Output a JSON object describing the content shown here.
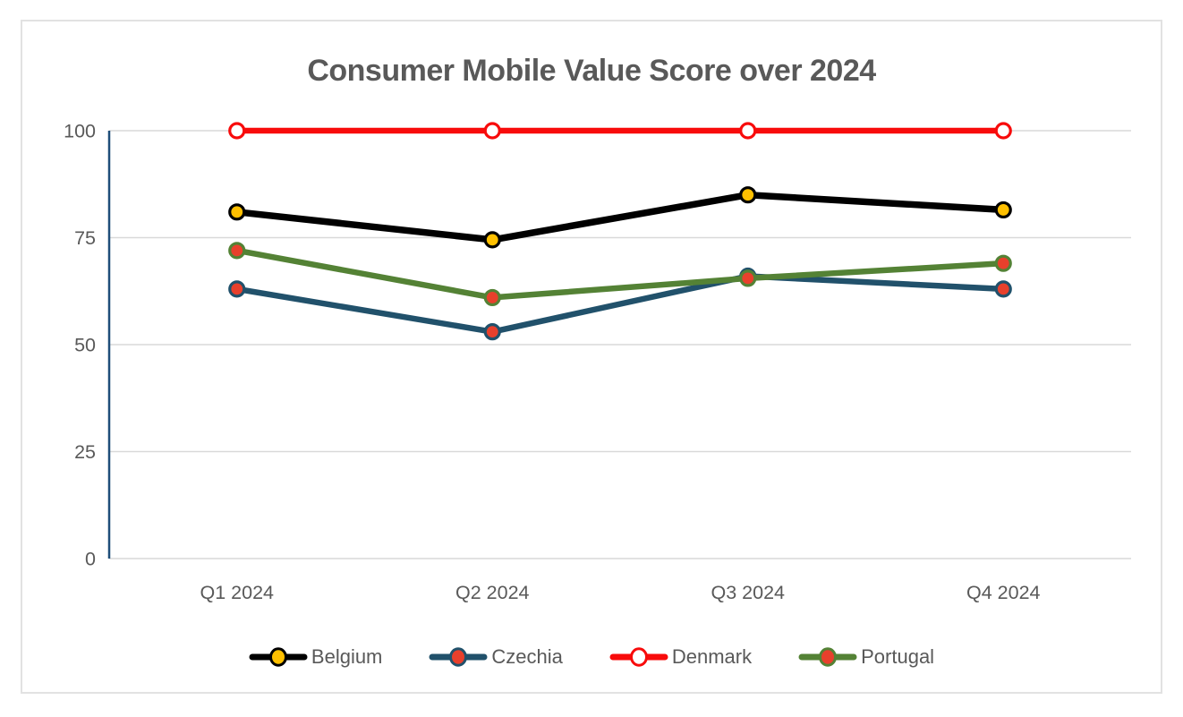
{
  "chart_data": {
    "type": "line",
    "title": "Consumer Mobile Value Score over 2024",
    "categories": [
      "Q1 2024",
      "Q2 2024",
      "Q3 2024",
      "Q4 2024"
    ],
    "series": [
      {
        "name": "Belgium",
        "values": [
          81,
          74.5,
          85,
          81.5
        ],
        "line_color": "#000000",
        "marker_fill": "#FFC000",
        "marker_edge": "#000000",
        "line_width": 7.5
      },
      {
        "name": "Czechia",
        "values": [
          63,
          53,
          66,
          63
        ],
        "line_color": "#21516B",
        "marker_fill": "#E8402C",
        "marker_edge": "#21516B",
        "line_width": 6.5
      },
      {
        "name": "Denmark",
        "values": [
          100,
          100,
          100,
          100
        ],
        "line_color": "#F80B0B",
        "marker_fill": "#FFFFFF",
        "marker_edge": "#F80B0B",
        "line_width": 6.5
      },
      {
        "name": "Portugal",
        "values": [
          72,
          61,
          65.5,
          69
        ],
        "line_color": "#548235",
        "marker_fill": "#E8402C",
        "marker_edge": "#548235",
        "line_width": 6.5
      }
    ],
    "y_axis": {
      "min": 0,
      "max": 100,
      "ticks": [
        0,
        25,
        50,
        75,
        100
      ]
    },
    "x_label_rotation": 0,
    "grid": true,
    "gridline_color": "#D9D9D9",
    "axis_line_color": "#1F4E79",
    "text_color": "#595959",
    "axis_font_size": 21.5,
    "legend_position": "bottom"
  }
}
